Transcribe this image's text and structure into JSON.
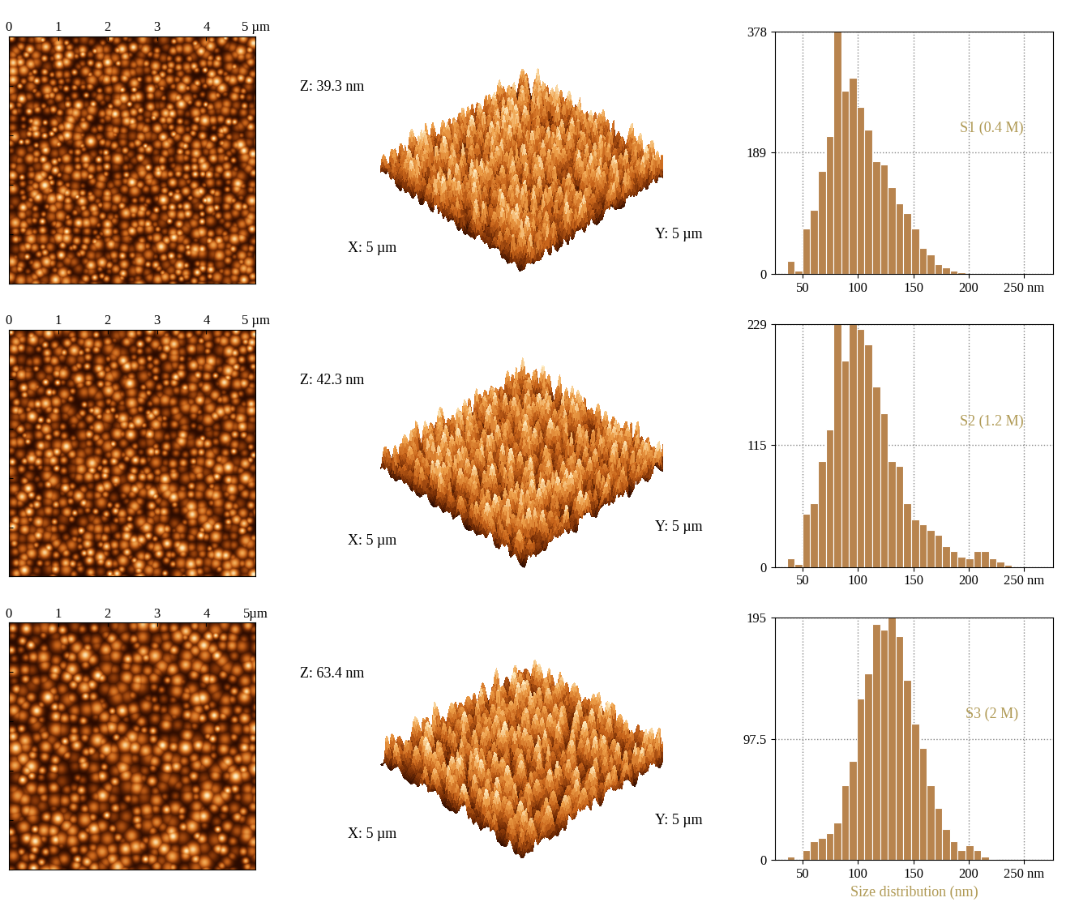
{
  "chart_data": [
    {
      "type": "histogram",
      "label": "S1 (0.4 M)",
      "bins": [
        36,
        43,
        50,
        57,
        64,
        71,
        78,
        85,
        92,
        99,
        106,
        113,
        120,
        127,
        134,
        141,
        148,
        155,
        162,
        169,
        176,
        183,
        190,
        197,
        204,
        211,
        218,
        225,
        232,
        239,
        246
      ],
      "counts": [
        20,
        5,
        70,
        100,
        160,
        215,
        378,
        285,
        305,
        260,
        225,
        175,
        170,
        135,
        110,
        95,
        70,
        40,
        30,
        15,
        10,
        5,
        2,
        0,
        0,
        0,
        0,
        0,
        0,
        0
      ],
      "xlim": [
        25,
        276
      ],
      "xticks": [
        50,
        100,
        150,
        200,
        {
          "value": 250,
          "label": "250 nm"
        }
      ],
      "ylim": [
        0,
        378
      ],
      "yticks": [
        0,
        189,
        378
      ],
      "grid": true,
      "color": "#b8844e"
    },
    {
      "type": "histogram",
      "label": "S2 (1.2 M)",
      "bins": [
        36,
        43,
        50,
        57,
        64,
        71,
        78,
        85,
        92,
        99,
        106,
        113,
        120,
        127,
        134,
        141,
        148,
        155,
        162,
        169,
        176,
        183,
        190,
        197,
        204,
        211,
        218,
        225,
        232,
        239,
        246
      ],
      "counts": [
        8,
        3,
        50,
        60,
        100,
        130,
        229,
        195,
        229,
        225,
        210,
        170,
        145,
        100,
        95,
        60,
        45,
        40,
        35,
        30,
        20,
        15,
        10,
        8,
        15,
        15,
        8,
        5,
        2,
        0
      ],
      "xlim": [
        25,
        276
      ],
      "xticks": [
        50,
        100,
        150,
        200,
        {
          "value": 250,
          "label": "250 nm"
        }
      ],
      "ylim": [
        0,
        229
      ],
      "yticks": [
        0,
        115,
        229
      ],
      "grid": true,
      "color": "#b8844e"
    },
    {
      "type": "histogram",
      "label": "S3 (2 M)",
      "x_label": "Size distribution (nm)",
      "bins": [
        36,
        43,
        50,
        57,
        64,
        71,
        78,
        85,
        92,
        99,
        106,
        113,
        120,
        127,
        134,
        141,
        148,
        155,
        162,
        169,
        176,
        183,
        190,
        197,
        204,
        211,
        218,
        225,
        232,
        239,
        246
      ],
      "counts": [
        3,
        0,
        8,
        15,
        18,
        22,
        30,
        60,
        80,
        130,
        150,
        190,
        185,
        195,
        180,
        145,
        110,
        90,
        60,
        42,
        25,
        15,
        8,
        12,
        8,
        3,
        1,
        0,
        0,
        0
      ],
      "xlim": [
        25,
        276
      ],
      "xticks": [
        50,
        100,
        150,
        200,
        {
          "value": 250,
          "label": "250 nm"
        }
      ],
      "ylim": [
        0,
        195
      ],
      "yticks": [
        0,
        97.5,
        195
      ],
      "grid": true,
      "color": "#b8844e"
    }
  ],
  "afm_images": [
    {
      "type": "image",
      "xlim": [
        0,
        5
      ],
      "xticks": [
        0,
        1,
        2,
        3,
        4,
        {
          "value": 5,
          "label": "5 µm"
        }
      ]
    },
    {
      "type": "image",
      "xlim": [
        0,
        5
      ],
      "xticks": [
        0,
        1,
        2,
        3,
        4,
        {
          "value": 5,
          "label": "5 µm"
        }
      ]
    },
    {
      "type": "image",
      "xlim": [
        0,
        5
      ],
      "xticks": [
        0,
        1,
        2,
        3,
        4,
        {
          "value": 5,
          "label": "5µm"
        }
      ]
    }
  ],
  "afm_3d": [
    {
      "type": "surface",
      "z_range": 39.3,
      "z_label": "Z: 39.3 nm",
      "x_label": "X: 5 µm",
      "y_label": "Y: 5 µm"
    },
    {
      "type": "surface",
      "z_range": 42.3,
      "z_label": "Z: 42.3 nm",
      "x_label": "X: 5 µm",
      "y_label": "Y: 5 µm"
    },
    {
      "type": "surface",
      "z_range": 63.4,
      "z_label": "Z: 63.4 nm",
      "x_label": "X: 5 µm",
      "y_label": "Y: 5 µm"
    }
  ]
}
